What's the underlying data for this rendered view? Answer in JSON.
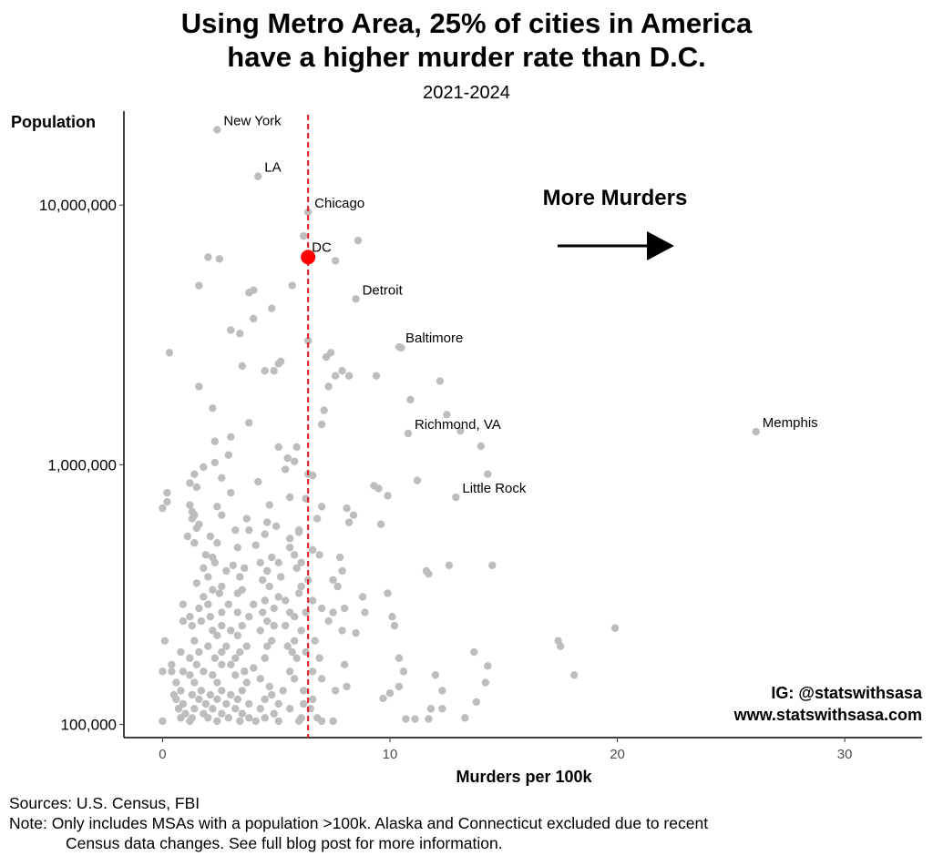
{
  "chart_data": {
    "type": "scatter",
    "title_line1": "Using Metro Area, 25% of cities in America",
    "title_line2": "have a higher murder rate than D.C.",
    "subtitle": "2021-2024",
    "xlabel": "Murders per 100k",
    "ylabel": "Population",
    "xlim": [
      -1.7,
      33.4
    ],
    "ylim": [
      89000,
      23000000
    ],
    "y_scale": "log10",
    "grid": false,
    "x_ticks": [
      0,
      10,
      20,
      30
    ],
    "y_ticks": [
      {
        "value": 100000,
        "label": "100,000"
      },
      {
        "value": 1000000,
        "label": "1,000,000"
      },
      {
        "value": 10000000,
        "label": "10,000,000"
      }
    ],
    "reference_line": {
      "x": 6.4,
      "style": "dashed",
      "color": "#e41a1c"
    },
    "point_color": "#bdbdbd",
    "highlight": {
      "label": "DC",
      "x": 6.4,
      "y": 6300000,
      "color": "#ff0000"
    },
    "labeled_points": [
      {
        "label": "New York",
        "x": 2.4,
        "y": 19500000
      },
      {
        "label": "LA",
        "x": 4.2,
        "y": 12900000
      },
      {
        "label": "Chicago",
        "x": 6.4,
        "y": 9400000
      },
      {
        "label": "Detroit",
        "x": 8.5,
        "y": 4350000
      },
      {
        "label": "Baltimore",
        "x": 10.4,
        "y": 2840000
      },
      {
        "label": "Richmond, VA",
        "x": 10.8,
        "y": 1320000
      },
      {
        "label": "Memphis",
        "x": 26.1,
        "y": 1340000
      },
      {
        "label": "Little Rock",
        "x": 12.9,
        "y": 750000
      }
    ],
    "other_points": [
      [
        6.2,
        7600000
      ],
      [
        8.6,
        7300000
      ],
      [
        2.0,
        6300000
      ],
      [
        2.5,
        6200000
      ],
      [
        7.6,
        6100000
      ],
      [
        1.6,
        4900000
      ],
      [
        3.8,
        4600000
      ],
      [
        4.0,
        4700000
      ],
      [
        5.7,
        4900000
      ],
      [
        4.8,
        4000000
      ],
      [
        4.0,
        3650000
      ],
      [
        3.0,
        3300000
      ],
      [
        3.4,
        3200000
      ],
      [
        6.4,
        3000000
      ],
      [
        10.5,
        2820000
      ],
      [
        0.3,
        2700000
      ],
      [
        7.2,
        2600000
      ],
      [
        7.4,
        2700000
      ],
      [
        5.1,
        2450000
      ],
      [
        5.2,
        2500000
      ],
      [
        3.5,
        2400000
      ],
      [
        4.5,
        2300000
      ],
      [
        4.9,
        2300000
      ],
      [
        7.6,
        2200000
      ],
      [
        7.9,
        2300000
      ],
      [
        8.2,
        2200000
      ],
      [
        9.4,
        2200000
      ],
      [
        12.2,
        2100000
      ],
      [
        7.3,
        2000000
      ],
      [
        1.6,
        2000000
      ],
      [
        10.9,
        1780000
      ],
      [
        2.2,
        1650000
      ],
      [
        7.1,
        1620000
      ],
      [
        12.5,
        1560000
      ],
      [
        3.8,
        1450000
      ],
      [
        7.0,
        1430000
      ],
      [
        13.1,
        1350000
      ],
      [
        3.0,
        1280000
      ],
      [
        2.3,
        1230000
      ],
      [
        5.1,
        1170000
      ],
      [
        5.9,
        1170000
      ],
      [
        14.0,
        1180000
      ],
      [
        2.9,
        1090000
      ],
      [
        5.5,
        1060000
      ],
      [
        5.8,
        1030000
      ],
      [
        2.3,
        1020000
      ],
      [
        1.8,
        980000
      ],
      [
        5.4,
        960000
      ],
      [
        1.4,
        920000
      ],
      [
        6.4,
        920000
      ],
      [
        6.6,
        910000
      ],
      [
        14.3,
        920000
      ],
      [
        2.6,
        890000
      ],
      [
        4.2,
        860000
      ],
      [
        1.2,
        850000
      ],
      [
        11.2,
        870000
      ],
      [
        9.3,
        830000
      ],
      [
        9.5,
        810000
      ],
      [
        1.5,
        820000
      ],
      [
        0.2,
        780000
      ],
      [
        3.0,
        780000
      ],
      [
        9.9,
        760000
      ],
      [
        5.6,
        750000
      ],
      [
        6.3,
        740000
      ],
      [
        0.2,
        720000
      ],
      [
        0.0,
        680000
      ],
      [
        1.2,
        700000
      ],
      [
        2.4,
        690000
      ],
      [
        4.7,
        700000
      ],
      [
        7.0,
        690000
      ],
      [
        8.1,
        680000
      ],
      [
        1.3,
        660000
      ],
      [
        1.4,
        640000
      ],
      [
        2.6,
        640000
      ],
      [
        8.4,
        640000
      ],
      [
        1.3,
        620000
      ],
      [
        3.7,
        620000
      ],
      [
        6.8,
        620000
      ],
      [
        1.6,
        590000
      ],
      [
        4.6,
        600000
      ],
      [
        8.2,
        600000
      ],
      [
        9.6,
        590000
      ],
      [
        1.5,
        570000
      ],
      [
        3.2,
        560000
      ],
      [
        3.8,
        560000
      ],
      [
        5.0,
        580000
      ],
      [
        6.0,
        560000
      ],
      [
        1.1,
        530000
      ],
      [
        2.1,
        530000
      ],
      [
        4.5,
        540000
      ],
      [
        5.6,
        520000
      ],
      [
        6.0,
        550000
      ],
      [
        1.4,
        500000
      ],
      [
        2.4,
        500000
      ],
      [
        3.3,
        480000
      ],
      [
        4.1,
        490000
      ],
      [
        5.6,
        480000
      ],
      [
        6.6,
        470000
      ],
      [
        1.9,
        450000
      ],
      [
        2.2,
        440000
      ],
      [
        4.8,
        440000
      ],
      [
        5.8,
        450000
      ],
      [
        6.9,
        450000
      ],
      [
        7.8,
        440000
      ],
      [
        2.3,
        420000
      ],
      [
        3.1,
        410000
      ],
      [
        4.3,
        420000
      ],
      [
        5.1,
        420000
      ],
      [
        6.1,
        420000
      ],
      [
        12.6,
        410000
      ],
      [
        14.5,
        410000
      ],
      [
        1.8,
        400000
      ],
      [
        2.8,
        390000
      ],
      [
        3.6,
        400000
      ],
      [
        4.6,
        390000
      ],
      [
        5.9,
        400000
      ],
      [
        7.9,
        390000
      ],
      [
        11.6,
        390000
      ],
      [
        11.7,
        380000
      ],
      [
        2.0,
        370000
      ],
      [
        3.4,
        370000
      ],
      [
        4.4,
        360000
      ],
      [
        5.2,
        370000
      ],
      [
        6.4,
        360000
      ],
      [
        7.5,
        360000
      ],
      [
        1.5,
        350000
      ],
      [
        2.6,
        340000
      ],
      [
        3.5,
        330000
      ],
      [
        4.7,
        340000
      ],
      [
        6.1,
        340000
      ],
      [
        7.7,
        340000
      ],
      [
        2.2,
        330000
      ],
      [
        2.5,
        320000
      ],
      [
        3.3,
        320000
      ],
      [
        5.1,
        310000
      ],
      [
        6.0,
        320000
      ],
      [
        9.9,
        320000
      ],
      [
        8.8,
        310000
      ],
      [
        1.8,
        310000
      ],
      [
        4.5,
        300000
      ],
      [
        5.4,
        300000
      ],
      [
        6.6,
        300000
      ],
      [
        0.9,
        290000
      ],
      [
        2.0,
        290000
      ],
      [
        2.9,
        290000
      ],
      [
        4.0,
        290000
      ],
      [
        4.9,
        280000
      ],
      [
        7.0,
        280000
      ],
      [
        8.0,
        280000
      ],
      [
        1.6,
        280000
      ],
      [
        2.6,
        270000
      ],
      [
        3.3,
        270000
      ],
      [
        4.4,
        270000
      ],
      [
        5.6,
        270000
      ],
      [
        6.3,
        270000
      ],
      [
        7.5,
        270000
      ],
      [
        8.9,
        270000
      ],
      [
        1.2,
        260000
      ],
      [
        2.1,
        260000
      ],
      [
        3.8,
        260000
      ],
      [
        4.6,
        250000
      ],
      [
        5.8,
        260000
      ],
      [
        7.3,
        250000
      ],
      [
        10.1,
        260000
      ],
      [
        0.9,
        250000
      ],
      [
        1.7,
        250000
      ],
      [
        2.6,
        240000
      ],
      [
        3.5,
        240000
      ],
      [
        4.9,
        240000
      ],
      [
        5.4,
        240000
      ],
      [
        10.2,
        240000
      ],
      [
        19.9,
        235000
      ],
      [
        1.3,
        240000
      ],
      [
        2.2,
        230000
      ],
      [
        3.0,
        230000
      ],
      [
        4.3,
        230000
      ],
      [
        6.1,
        230000
      ],
      [
        7.9,
        230000
      ],
      [
        8.5,
        225000
      ],
      [
        2.4,
        220000
      ],
      [
        3.3,
        220000
      ],
      [
        4.8,
        210000
      ],
      [
        5.8,
        210000
      ],
      [
        6.7,
        210000
      ],
      [
        17.4,
        210000
      ],
      [
        0.1,
        210000
      ],
      [
        1.4,
        210000
      ],
      [
        2.0,
        200000
      ],
      [
        2.8,
        200000
      ],
      [
        3.7,
        200000
      ],
      [
        4.6,
        200000
      ],
      [
        5.5,
        200000
      ],
      [
        17.5,
        200000
      ],
      [
        0.8,
        190000
      ],
      [
        1.6,
        190000
      ],
      [
        2.6,
        190000
      ],
      [
        3.4,
        190000
      ],
      [
        5.7,
        190000
      ],
      [
        6.3,
        190000
      ],
      [
        13.7,
        190000
      ],
      [
        10.4,
        180000
      ],
      [
        1.2,
        180000
      ],
      [
        2.3,
        180000
      ],
      [
        3.2,
        180000
      ],
      [
        4.5,
        180000
      ],
      [
        5.9,
        180000
      ],
      [
        6.9,
        180000
      ],
      [
        8.0,
        170000
      ],
      [
        0.4,
        170000
      ],
      [
        1.5,
        170000
      ],
      [
        2.6,
        170000
      ],
      [
        3.0,
        170000
      ],
      [
        4.0,
        165000
      ],
      [
        14.3,
        168000
      ],
      [
        0.0,
        160000
      ],
      [
        0.9,
        160000
      ],
      [
        1.8,
        160000
      ],
      [
        3.6,
        160000
      ],
      [
        5.6,
        160000
      ],
      [
        6.6,
        160000
      ],
      [
        10.6,
        160000
      ],
      [
        0.4,
        160000
      ],
      [
        1.2,
        155000
      ],
      [
        2.2,
        155000
      ],
      [
        3.2,
        155000
      ],
      [
        4.3,
        150000
      ],
      [
        5.8,
        150000
      ],
      [
        7.0,
        150000
      ],
      [
        12.0,
        155000
      ],
      [
        18.1,
        155000
      ],
      [
        0.6,
        145000
      ],
      [
        1.4,
        145000
      ],
      [
        2.4,
        145000
      ],
      [
        3.7,
        145000
      ],
      [
        4.7,
        140000
      ],
      [
        8.1,
        140000
      ],
      [
        10.4,
        140000
      ],
      [
        14.2,
        145000
      ],
      [
        0.8,
        135000
      ],
      [
        1.7,
        135000
      ],
      [
        2.6,
        135000
      ],
      [
        3.5,
        135000
      ],
      [
        5.3,
        135000
      ],
      [
        6.2,
        135000
      ],
      [
        7.6,
        135000
      ],
      [
        0.5,
        130000
      ],
      [
        1.3,
        130000
      ],
      [
        2.1,
        130000
      ],
      [
        3.0,
        130000
      ],
      [
        4.8,
        130000
      ],
      [
        10.0,
        132000
      ],
      [
        12.3,
        135000
      ],
      [
        0.6,
        125000
      ],
      [
        1.6,
        125000
      ],
      [
        2.4,
        125000
      ],
      [
        3.3,
        125000
      ],
      [
        4.5,
        125000
      ],
      [
        6.6,
        125000
      ],
      [
        9.7,
        126000
      ],
      [
        0.9,
        120000
      ],
      [
        1.9,
        120000
      ],
      [
        2.8,
        120000
      ],
      [
        3.8,
        120000
      ],
      [
        5.1,
        120000
      ],
      [
        6.2,
        120000
      ],
      [
        13.8,
        122000
      ],
      [
        0.7,
        115000
      ],
      [
        1.4,
        115000
      ],
      [
        2.2,
        115000
      ],
      [
        3.2,
        115000
      ],
      [
        4.3,
        115000
      ],
      [
        5.6,
        115000
      ],
      [
        6.5,
        115000
      ],
      [
        11.8,
        115000
      ],
      [
        12.3,
        115000
      ],
      [
        1.0,
        110000
      ],
      [
        1.8,
        110000
      ],
      [
        2.6,
        110000
      ],
      [
        3.5,
        110000
      ],
      [
        4.9,
        110000
      ],
      [
        0.8,
        106000
      ],
      [
        1.3,
        106000
      ],
      [
        2.0,
        106000
      ],
      [
        2.9,
        106000
      ],
      [
        3.8,
        106000
      ],
      [
        4.5,
        106000
      ],
      [
        6.1,
        106000
      ],
      [
        6.8,
        106000
      ],
      [
        10.7,
        105000
      ],
      [
        11.1,
        105000
      ],
      [
        11.7,
        105000
      ],
      [
        13.3,
        106000
      ],
      [
        0.0,
        103000
      ],
      [
        1.2,
        103000
      ],
      [
        2.4,
        103000
      ],
      [
        3.4,
        103000
      ],
      [
        4.1,
        103000
      ],
      [
        5.1,
        103000
      ],
      [
        6.0,
        103000
      ],
      [
        7.0,
        103000
      ],
      [
        7.5,
        103000
      ]
    ],
    "annotation_text": "More Murders",
    "arrow_direction": "right"
  },
  "credit": {
    "line1": "IG: @statswithsasa",
    "line2": "www.statswithsasa.com"
  },
  "footer": {
    "sources": "Sources: U.S. Census, FBI",
    "note_line1": "Note: Only includes MSAs with a population >100k. Alaska and Connecticut excluded due to recent",
    "note_line2": "Census data changes. See full blog post for more information."
  }
}
